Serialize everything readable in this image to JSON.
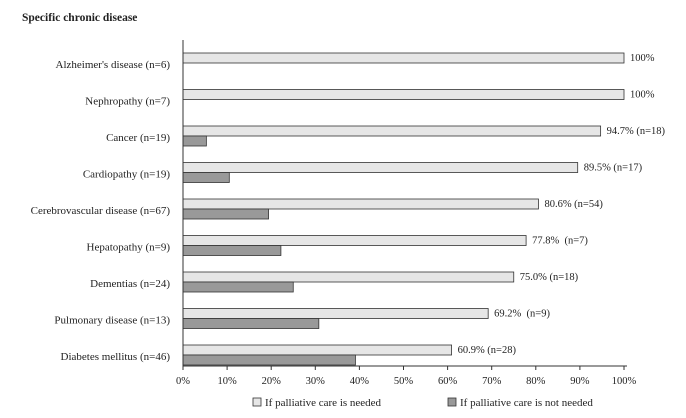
{
  "chart_data": {
    "type": "bar",
    "orientation": "horizontal",
    "title": "Specific chronic disease",
    "categories": [
      "Alzheimer's disease (n=6)",
      "Nephropathy (n=7)",
      "Cancer (n=19)",
      "Cardiopathy (n=19)",
      "Cerebrovascular disease (n=67)",
      "Hepatopathy (n=9)",
      "Dementias (n=24)",
      "Pulmonary disease (n=13)",
      "Diabetes mellitus (n=46)"
    ],
    "series": [
      {
        "name": "If palliative care is needed",
        "color": "#e6e6e6",
        "values": [
          100,
          100,
          94.7,
          89.5,
          80.6,
          77.8,
          75.0,
          69.2,
          60.9
        ],
        "labels": [
          "100%",
          "100%",
          "94.7% (n=18)",
          "89.5% (n=17)",
          "80.6% (n=54)",
          "77.8%  (n=7)",
          "75.0% (n=18)",
          "69.2%  (n=9)",
          "60.9% (n=28)"
        ]
      },
      {
        "name": "If palliative care is not needed",
        "color": "#999999",
        "values": [
          0,
          0,
          5.3,
          10.5,
          19.4,
          22.2,
          25.0,
          30.8,
          39.1
        ],
        "labels": []
      }
    ],
    "xlim": [
      0,
      100
    ],
    "xticks": [
      "0%",
      "10%",
      "20%",
      "30%",
      "40%",
      "50%",
      "60%",
      "70%",
      "80%",
      "90%",
      "100%"
    ],
    "grid": false,
    "legend_position": "bottom"
  }
}
